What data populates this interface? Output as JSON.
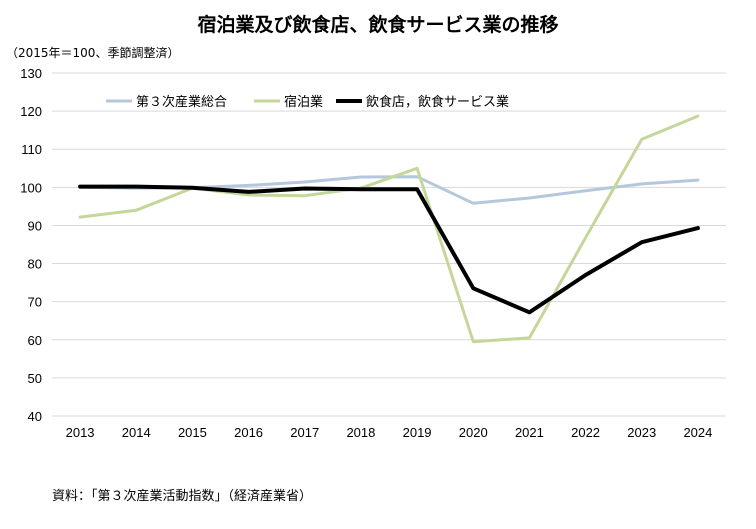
{
  "chart_data": {
    "type": "line",
    "title": "宿泊業及び飲食店、飲食サービス業の推移",
    "ylabel": "（2015年＝100、季節調整済）",
    "xlabel": "",
    "ylim": [
      40,
      130
    ],
    "yticks": [
      40,
      50,
      60,
      70,
      80,
      90,
      100,
      110,
      120,
      130
    ],
    "x": [
      "2013",
      "2014",
      "2015",
      "2016",
      "2017",
      "2018",
      "2019",
      "2020",
      "2021",
      "2022",
      "2023",
      "2024"
    ],
    "grid": true,
    "legend": "top-left",
    "series": [
      {
        "name": "第３次産業総合",
        "color": "#b4c7dc",
        "width": 3,
        "values": [
          100.0,
          99.8,
          99.9,
          100.5,
          101.4,
          102.7,
          102.8,
          95.8,
          97.2,
          99.1,
          100.9,
          101.9
        ]
      },
      {
        "name": "宿泊業",
        "color": "#c4d79b",
        "width": 3,
        "values": [
          92.2,
          94.0,
          99.8,
          98.0,
          97.8,
          99.8,
          105.0,
          59.5,
          60.5,
          86.8,
          112.6,
          118.7
        ]
      },
      {
        "name": "飲食店，飲食サービス業",
        "color": "#000000",
        "width": 4,
        "values": [
          100.2,
          100.2,
          99.9,
          98.8,
          99.7,
          99.5,
          99.5,
          73.5,
          67.2,
          77.0,
          85.6,
          89.3
        ]
      }
    ]
  },
  "source": "資料：「第３次産業活動指数」（経済産業省）"
}
